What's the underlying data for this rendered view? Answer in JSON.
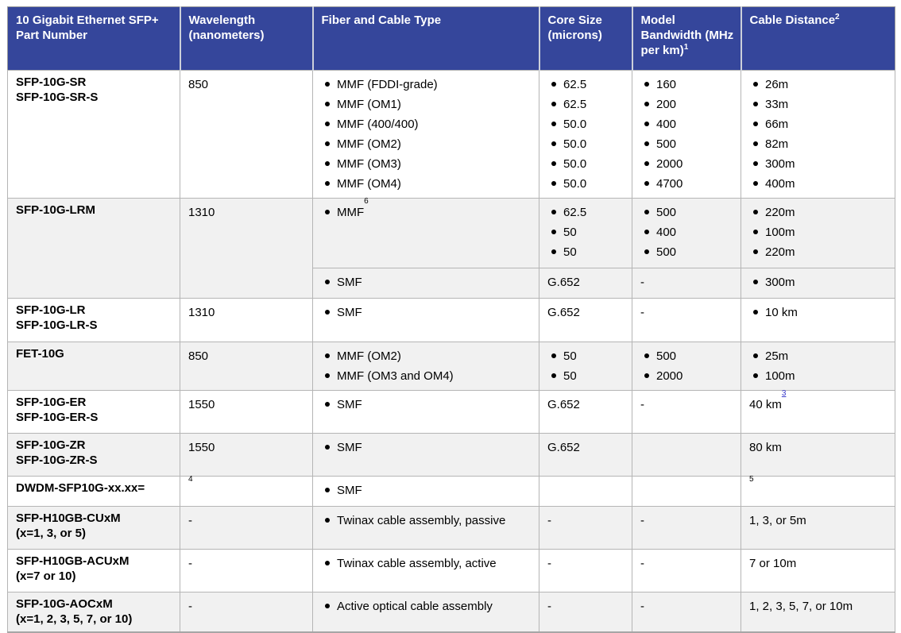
{
  "table": {
    "name": "10 Gigabit Ethernet SFP+ specifications",
    "colors": {
      "header_bg": "#35469B",
      "header_text": "#FFFFFF",
      "shaded_row_bg": "#F1F1F1",
      "border": "#B5B5B5",
      "footnote_link": "#3A3ACB"
    },
    "header": {
      "columns": [
        {
          "key": "part-number",
          "label": "10 Gigabit Ethernet SFP+ Part Number"
        },
        {
          "key": "wavelength",
          "label": "Wavelength (nanometers)"
        },
        {
          "key": "fiber-type",
          "label": "Fiber and Cable Type"
        },
        {
          "key": "core-size",
          "label": "Core Size (microns)"
        },
        {
          "key": "bandwidth",
          "label": "Model Bandwidth (MHz per km)",
          "sup": "1"
        },
        {
          "key": "distance",
          "label": "Cable Distance",
          "sup": "2"
        }
      ]
    },
    "rows": [
      {
        "shaded": false,
        "cells": [
          {
            "col": "part-number",
            "bold": true,
            "items": [
              {
                "text": "SFP-10G-SR"
              },
              {
                "text": "SFP-10G-SR-S"
              }
            ]
          },
          {
            "col": "wavelength",
            "items": [
              {
                "text": "850"
              }
            ]
          },
          {
            "col": "fiber-type",
            "items": [
              {
                "text": "MMF (FDDI-grade)",
                "bullet": true
              },
              {
                "text": "MMF (OM1)",
                "bullet": true
              },
              {
                "text": "MMF (400/400)",
                "bullet": true
              },
              {
                "text": "MMF (OM2)",
                "bullet": true
              },
              {
                "text": "MMF (OM3)",
                "bullet": true
              },
              {
                "text": "MMF (OM4)",
                "bullet": true
              }
            ]
          },
          {
            "col": "core-size",
            "items": [
              {
                "text": "62.5",
                "bullet": true
              },
              {
                "text": "62.5",
                "bullet": true
              },
              {
                "text": "50.0",
                "bullet": true
              },
              {
                "text": "50.0",
                "bullet": true
              },
              {
                "text": "50.0",
                "bullet": true
              },
              {
                "text": "50.0",
                "bullet": true
              }
            ]
          },
          {
            "col": "bandwidth",
            "items": [
              {
                "text": "160",
                "bullet": true
              },
              {
                "text": "200",
                "bullet": true
              },
              {
                "text": "400",
                "bullet": true
              },
              {
                "text": "500",
                "bullet": true
              },
              {
                "text": "2000",
                "bullet": true
              },
              {
                "text": "4700",
                "bullet": true
              }
            ]
          },
          {
            "col": "distance",
            "items": [
              {
                "text": "26m",
                "bullet": true
              },
              {
                "text": "33m",
                "bullet": true
              },
              {
                "text": "66m",
                "bullet": true
              },
              {
                "text": "82m",
                "bullet": true
              },
              {
                "text": "300m",
                "bullet": true
              },
              {
                "text": "400m",
                "bullet": true
              }
            ]
          }
        ]
      },
      {
        "shaded": true,
        "cells": [
          {
            "col": "part-number",
            "bold": true,
            "rowspan": 2,
            "items": [
              {
                "text": "SFP-10G-LRM"
              }
            ]
          },
          {
            "col": "wavelength",
            "rowspan": 2,
            "items": [
              {
                "text": "1310"
              }
            ]
          },
          {
            "col": "fiber-type",
            "items": [
              {
                "text": "MMF",
                "bullet": true,
                "sup": "6"
              }
            ]
          },
          {
            "col": "core-size",
            "items": [
              {
                "text": "62.5",
                "bullet": true
              },
              {
                "text": "50",
                "bullet": true
              },
              {
                "text": "50",
                "bullet": true
              }
            ]
          },
          {
            "col": "bandwidth",
            "items": [
              {
                "text": "500",
                "bullet": true
              },
              {
                "text": "400",
                "bullet": true
              },
              {
                "text": "500",
                "bullet": true
              }
            ]
          },
          {
            "col": "distance",
            "items": [
              {
                "text": "220m",
                "bullet": true
              },
              {
                "text": "100m",
                "bullet": true
              },
              {
                "text": "220m",
                "bullet": true
              }
            ]
          }
        ]
      },
      {
        "shaded": true,
        "cells": [
          {
            "col": "fiber-type",
            "items": [
              {
                "text": "SMF",
                "bullet": true
              }
            ]
          },
          {
            "col": "core-size",
            "items": [
              {
                "text": "G.652"
              }
            ]
          },
          {
            "col": "bandwidth",
            "items": [
              {
                "text": "-"
              }
            ]
          },
          {
            "col": "distance",
            "items": [
              {
                "text": "300m",
                "bullet": true
              }
            ]
          }
        ]
      },
      {
        "shaded": false,
        "cells": [
          {
            "col": "part-number",
            "bold": true,
            "items": [
              {
                "text": "SFP-10G-LR"
              },
              {
                "text": "SFP-10G-LR-S"
              }
            ]
          },
          {
            "col": "wavelength",
            "items": [
              {
                "text": "1310"
              }
            ]
          },
          {
            "col": "fiber-type",
            "items": [
              {
                "text": "SMF",
                "bullet": true
              }
            ]
          },
          {
            "col": "core-size",
            "items": [
              {
                "text": "G.652"
              }
            ]
          },
          {
            "col": "bandwidth",
            "items": [
              {
                "text": "-"
              }
            ]
          },
          {
            "col": "distance",
            "items": [
              {
                "text": "10 km",
                "bullet": true
              }
            ]
          }
        ]
      },
      {
        "shaded": true,
        "cells": [
          {
            "col": "part-number",
            "bold": true,
            "items": [
              {
                "text": "FET-10G"
              }
            ]
          },
          {
            "col": "wavelength",
            "items": [
              {
                "text": "850"
              }
            ]
          },
          {
            "col": "fiber-type",
            "items": [
              {
                "text": "MMF (OM2)",
                "bullet": true
              },
              {
                "text": "MMF (OM3 and OM4)",
                "bullet": true
              }
            ]
          },
          {
            "col": "core-size",
            "items": [
              {
                "text": "50",
                "bullet": true
              },
              {
                "text": "50",
                "bullet": true
              }
            ]
          },
          {
            "col": "bandwidth",
            "items": [
              {
                "text": "500",
                "bullet": true
              },
              {
                "text": "2000",
                "bullet": true
              }
            ]
          },
          {
            "col": "distance",
            "items": [
              {
                "text": "25m",
                "bullet": true
              },
              {
                "text": "100m",
                "bullet": true
              }
            ]
          }
        ]
      },
      {
        "shaded": false,
        "cells": [
          {
            "col": "part-number",
            "bold": true,
            "items": [
              {
                "text": "SFP-10G-ER"
              },
              {
                "text": "SFP-10G-ER-S"
              }
            ]
          },
          {
            "col": "wavelength",
            "items": [
              {
                "text": "1550"
              }
            ]
          },
          {
            "col": "fiber-type",
            "items": [
              {
                "text": "SMF",
                "bullet": true
              }
            ]
          },
          {
            "col": "core-size",
            "items": [
              {
                "text": "G.652"
              }
            ]
          },
          {
            "col": "bandwidth",
            "items": [
              {
                "text": "-"
              }
            ]
          },
          {
            "col": "distance",
            "items": [
              {
                "text": "40 km",
                "sup": "3",
                "sup_link": true
              }
            ]
          }
        ]
      },
      {
        "shaded": true,
        "cells": [
          {
            "col": "part-number",
            "bold": true,
            "items": [
              {
                "text": "SFP-10G-ZR"
              },
              {
                "text": "SFP-10G-ZR-S"
              }
            ]
          },
          {
            "col": "wavelength",
            "items": [
              {
                "text": "1550"
              }
            ]
          },
          {
            "col": "fiber-type",
            "items": [
              {
                "text": "SMF",
                "bullet": true
              }
            ]
          },
          {
            "col": "core-size",
            "items": [
              {
                "text": "G.652"
              }
            ]
          },
          {
            "col": "bandwidth",
            "items": []
          },
          {
            "col": "distance",
            "items": [
              {
                "text": "80 km"
              }
            ]
          }
        ]
      },
      {
        "shaded": false,
        "cells": [
          {
            "col": "part-number",
            "bold": true,
            "items": [
              {
                "text": "DWDM-SFP10G-xx.xx="
              }
            ]
          },
          {
            "col": "wavelength",
            "items": [
              {
                "text": "",
                "sup": "4"
              }
            ]
          },
          {
            "col": "fiber-type",
            "items": [
              {
                "text": "SMF",
                "bullet": true
              }
            ]
          },
          {
            "col": "core-size",
            "items": []
          },
          {
            "col": "bandwidth",
            "items": []
          },
          {
            "col": "distance",
            "items": [
              {
                "text": "",
                "sup": "5"
              }
            ]
          }
        ]
      },
      {
        "shaded": true,
        "cells": [
          {
            "col": "part-number",
            "bold": true,
            "items": [
              {
                "text": "SFP-H10GB-CUxM"
              },
              {
                "text": "(x=1, 3, or 5)"
              }
            ]
          },
          {
            "col": "wavelength",
            "items": [
              {
                "text": "-"
              }
            ]
          },
          {
            "col": "fiber-type",
            "items": [
              {
                "text": "Twinax cable assembly, passive",
                "bullet": true
              }
            ]
          },
          {
            "col": "core-size",
            "items": [
              {
                "text": "-"
              }
            ]
          },
          {
            "col": "bandwidth",
            "items": [
              {
                "text": "-"
              }
            ]
          },
          {
            "col": "distance",
            "items": [
              {
                "text": "1, 3, or 5m"
              }
            ]
          }
        ]
      },
      {
        "shaded": false,
        "cells": [
          {
            "col": "part-number",
            "bold": true,
            "items": [
              {
                "text": "SFP-H10GB-ACUxM"
              },
              {
                "text": "(x=7 or 10)"
              }
            ]
          },
          {
            "col": "wavelength",
            "items": [
              {
                "text": "-"
              }
            ]
          },
          {
            "col": "fiber-type",
            "items": [
              {
                "text": "Twinax cable assembly, active",
                "bullet": true
              }
            ]
          },
          {
            "col": "core-size",
            "items": [
              {
                "text": "-"
              }
            ]
          },
          {
            "col": "bandwidth",
            "items": [
              {
                "text": "-"
              }
            ]
          },
          {
            "col": "distance",
            "items": [
              {
                "text": "7 or 10m"
              }
            ]
          }
        ]
      },
      {
        "shaded": true,
        "cells": [
          {
            "col": "part-number",
            "bold": true,
            "items": [
              {
                "text": "SFP-10G-AOCxM"
              },
              {
                "text": "(x=1, 2, 3, 5, 7, or 10)"
              }
            ]
          },
          {
            "col": "wavelength",
            "items": [
              {
                "text": "-"
              }
            ]
          },
          {
            "col": "fiber-type",
            "items": [
              {
                "text": "Active optical cable assembly",
                "bullet": true
              }
            ]
          },
          {
            "col": "core-size",
            "items": [
              {
                "text": "-"
              }
            ]
          },
          {
            "col": "bandwidth",
            "items": [
              {
                "text": "-"
              }
            ]
          },
          {
            "col": "distance",
            "items": [
              {
                "text": "1, 2, 3, 5, 7, or 10m"
              }
            ]
          }
        ]
      }
    ]
  }
}
